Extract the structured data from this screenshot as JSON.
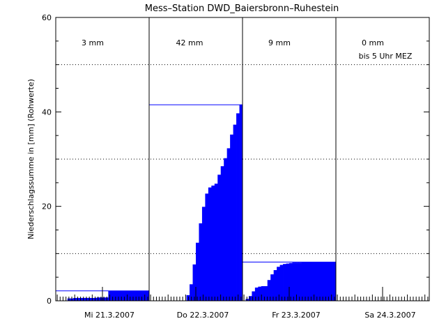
{
  "chart_data": {
    "type": "bar",
    "title": "Mess–Station DWD_Baiersbronn–Ruhestein",
    "xlabel": "",
    "ylabel": "Niederschlagssumme in [mm] (Rohwerte)",
    "ylim": [
      0,
      60
    ],
    "y_ticks": [
      0,
      20,
      40,
      60
    ],
    "grid": "dotted horizontal at 10, 30, 50",
    "bar_color": "#0000ff",
    "days": [
      {
        "label": "Mi 21.3.2007",
        "total_label": "3 mm",
        "note": "",
        "total_line": 2.1,
        "cumulative_hourly": [
          0,
          0,
          0,
          0,
          0.5,
          0.5,
          0.6,
          0.6,
          0.6,
          0.6,
          0.6,
          0.6,
          0.6,
          0.6,
          0.7,
          0.7,
          0.7,
          0.7,
          2.1,
          2.1,
          2.1,
          2.1,
          2.1,
          2.1,
          2.1,
          2.1,
          2.1,
          2.1,
          2.1,
          2.1,
          2.1,
          2.1
        ]
      },
      {
        "label": "Do 22.3.2007",
        "total_label": "42 mm",
        "note": "",
        "total_line": 41.5,
        "cumulative_hourly": [
          0,
          0,
          0,
          0,
          0,
          0,
          0,
          0,
          0,
          0,
          0,
          0,
          1.2,
          3.5,
          7.7,
          12.3,
          16.4,
          19.9,
          22.7,
          24.0,
          24.4,
          24.8,
          26.7,
          28.5,
          30.2,
          32.3,
          35.2,
          37.3,
          39.7,
          41.5
        ]
      },
      {
        "label": "Fr 23.3.2007",
        "total_label": "9 mm",
        "note": "",
        "total_line": 8.2,
        "cumulative_hourly": [
          0,
          0.4,
          1.0,
          2.0,
          2.8,
          3.0,
          3.1,
          3.1,
          4.4,
          5.6,
          6.5,
          7.2,
          7.6,
          7.8,
          7.9,
          8.0,
          8.1,
          8.1,
          8.1,
          8.2,
          8.2,
          8.2,
          8.2,
          8.2,
          8.2,
          8.2,
          8.2,
          8.2,
          8.2,
          8.2
        ]
      },
      {
        "label": "Sa 24.3.2007",
        "total_label": "0 mm",
        "note": "bis 5 Uhr MEZ",
        "total_line": null,
        "cumulative_hourly": []
      }
    ]
  }
}
